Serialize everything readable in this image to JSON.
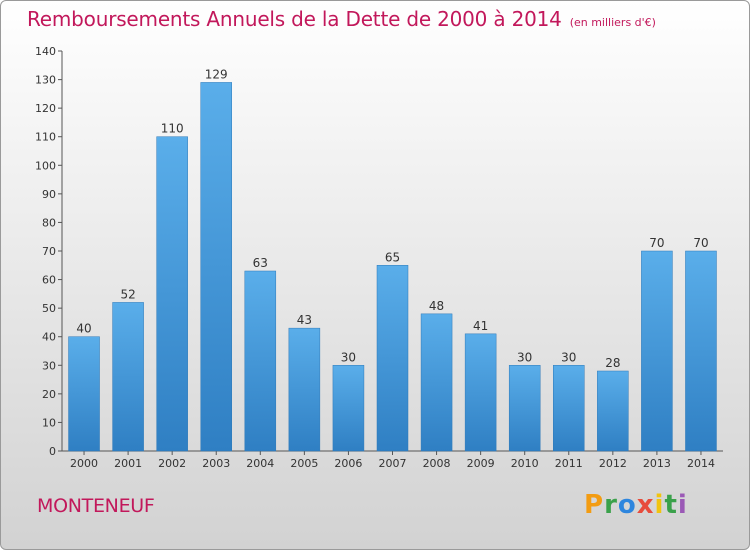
{
  "chart_data": {
    "type": "bar",
    "title": "Remboursements Annuels de la Dette de 2000 à 2014",
    "subtitle": "(en milliers d'€)",
    "categories": [
      "2000",
      "2001",
      "2002",
      "2003",
      "2004",
      "2005",
      "2006",
      "2007",
      "2008",
      "2009",
      "2010",
      "2011",
      "2012",
      "2013",
      "2014"
    ],
    "values": [
      40,
      52,
      110,
      129,
      63,
      43,
      30,
      65,
      48,
      41,
      30,
      30,
      28,
      70,
      70
    ],
    "data_labels": [
      "40",
      "52",
      "110",
      "129",
      "63",
      "43",
      "30",
      "65",
      "48",
      "41",
      "30",
      "30",
      "28",
      "70",
      "70"
    ],
    "y_ticks": [
      "0",
      "10",
      "20",
      "30",
      "40",
      "50",
      "60",
      "70",
      "80",
      "90",
      "100",
      "110",
      "120",
      "130",
      "140"
    ],
    "ylim": [
      0,
      140
    ],
    "ytick_step": 10,
    "xlabel": "",
    "ylabel": "",
    "grid": false,
    "bar_color": "#3f97dc"
  },
  "footer": {
    "commune": "MONTENEUF",
    "logo": "Proxiti"
  },
  "colors": {
    "title": "#c2185b",
    "bar": "#3f97dc"
  }
}
